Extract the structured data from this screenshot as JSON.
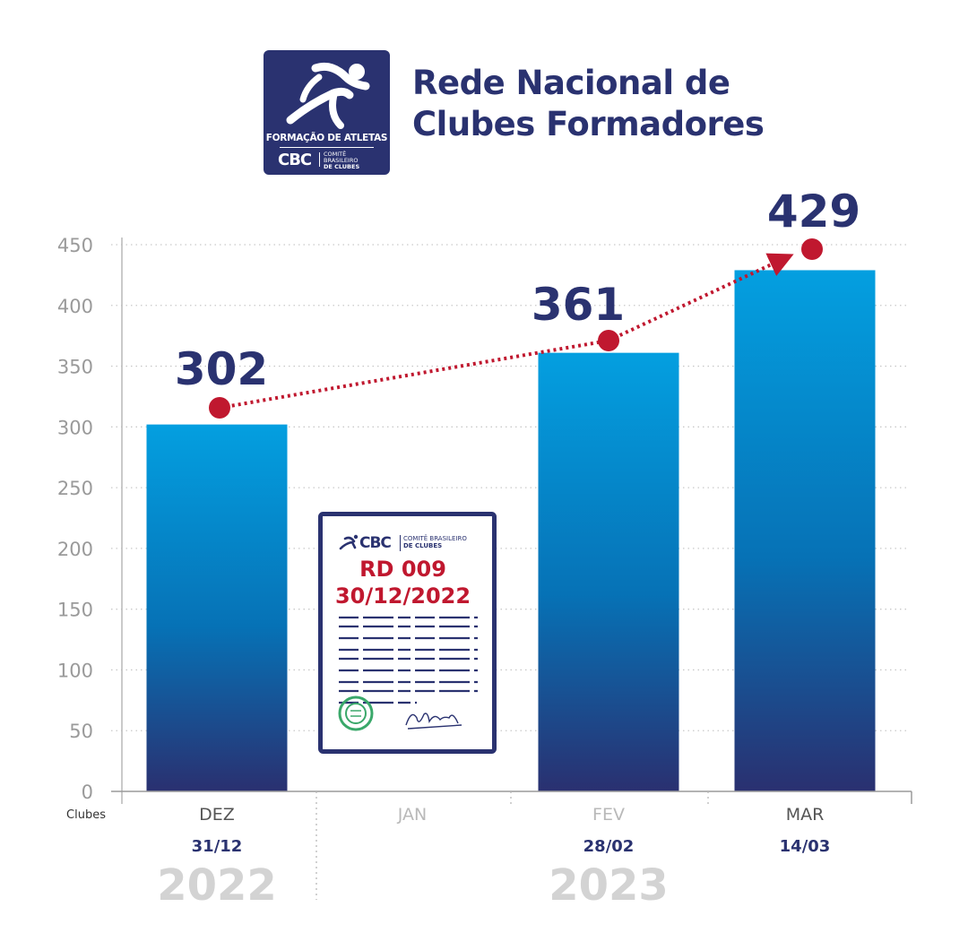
{
  "header": {
    "logo": {
      "program": "FORMAÇÃO DE ATLETAS",
      "org_short": "CBC",
      "org_line1": "COMITÊ BRASILEIRO",
      "org_line2": "DE CLUBES"
    },
    "title_line1": "Rede Nacional de",
    "title_line2": "Clubes Formadores"
  },
  "document": {
    "org_short": "CBC",
    "org_line1": "COMITÊ BRASILEIRO",
    "org_line2": "DE CLUBES",
    "code": "RD 009",
    "date": "30/12/2022"
  },
  "colors": {
    "navy": "#2a3270",
    "bar_top": "#049fe0",
    "bar_bottom": "#2a3070",
    "trend": "#c0182f",
    "axis_text": "#9a9a9a",
    "muted_text": "#d3d3d3",
    "seal": "#3aa86a"
  },
  "chart_data": {
    "type": "bar",
    "ylabel": "Clubes",
    "ylim": [
      0,
      450
    ],
    "yticks": [
      0,
      50,
      100,
      150,
      200,
      250,
      300,
      350,
      400,
      450
    ],
    "grid": true,
    "categories": [
      "DEZ",
      "JAN",
      "FEV",
      "MAR"
    ],
    "dates": [
      "31/12",
      "",
      "28/02",
      "14/03"
    ],
    "values": [
      302,
      null,
      361,
      429
    ],
    "value_labels": [
      "302",
      "",
      "361",
      "429"
    ],
    "years": [
      {
        "label": "2022",
        "under": "DEZ"
      },
      {
        "label": "2023",
        "under": "FEV"
      }
    ],
    "trend_line": {
      "style": "dotted",
      "arrow": true,
      "points": [
        "DEZ",
        "FEV",
        "MAR"
      ]
    }
  }
}
